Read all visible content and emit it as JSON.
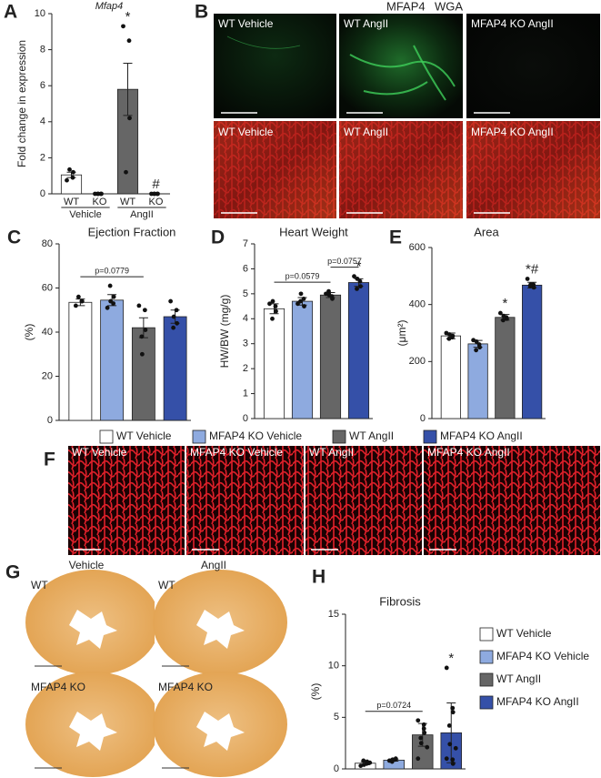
{
  "letters": [
    "A",
    "B",
    "C",
    "D",
    "E",
    "F",
    "G",
    "H"
  ],
  "panel_b": {
    "header": [
      "MFAP4",
      "WGA"
    ],
    "header_colors": [
      "#2eb84d",
      "#e0243a"
    ],
    "labels": [
      [
        "WT Vehicle",
        "WT AngII",
        "MFAP4 KO AngII"
      ],
      [
        "WT Vehicle",
        "WT AngII",
        "MFAP4 KO AngII"
      ]
    ]
  },
  "panel_f": {
    "labels": [
      "WT Vehicle",
      "MFAP4 KO Vehicle",
      "WT AngII",
      "MFAP4 KO AngII"
    ]
  },
  "panel_g": {
    "columns": [
      "Vehicle",
      "AngII"
    ],
    "labels": [
      "WT",
      "WT",
      "MFAP4 KO",
      "MFAP4 KO"
    ]
  },
  "legends": [
    {
      "names": [
        "WT Vehicle",
        "MFAP4 KO Vehicle",
        "WT AngII",
        "MFAP4 KO AngII"
      ],
      "colors": [
        "#ffffff",
        "#8eaadf",
        "#666666",
        "#3550a8"
      ]
    },
    {
      "names": [
        "WT Vehicle",
        "MFAP4 KO Vehicle",
        "WT AngII",
        "MFAP4 KO AngII"
      ],
      "colors": [
        "#ffffff",
        "#8eaadf",
        "#666666",
        "#3550a8"
      ]
    }
  ],
  "chart_data": [
    {
      "type": "bar",
      "title": "Mfap4",
      "ylabel": "Fold change in expression",
      "categories": [
        "WT",
        "KO",
        "WT",
        "KO"
      ],
      "groups": [
        "Vehicle",
        "AngII"
      ],
      "values": [
        1.05,
        0,
        5.8,
        0
      ],
      "errors": [
        0.15,
        0,
        1.45,
        0
      ],
      "points": [
        [
          0.75,
          0.9,
          1.2,
          1.35
        ],
        [
          0,
          0,
          0,
          0,
          0
        ],
        [
          9.3,
          8.5,
          4.2,
          1.2
        ],
        [
          0,
          0,
          0,
          0,
          0
        ]
      ],
      "colors": [
        "#ffffff",
        "#ffffff",
        "#666666",
        "#ffffff"
      ],
      "marks": [
        null,
        null,
        "*",
        "#"
      ],
      "brackets": [],
      "ylim": [
        0,
        10
      ],
      "yticks": [
        0,
        2,
        4,
        6,
        8,
        10
      ]
    },
    {
      "type": "bar",
      "title": "Ejection Fraction",
      "ylabel": "(%)",
      "values": [
        53.5,
        54.5,
        42,
        47
      ],
      "errors": [
        1.5,
        2.5,
        4.5,
        3
      ],
      "points": [
        [
          52,
          54,
          54,
          56
        ],
        [
          51,
          53,
          56,
          61,
          54
        ],
        [
          52,
          50,
          41,
          38,
          30
        ],
        [
          54,
          50,
          44,
          42,
          47
        ]
      ],
      "colors": [
        "#ffffff",
        "#8eaadf",
        "#666666",
        "#3550a8"
      ],
      "marks": [
        null,
        null,
        null,
        null
      ],
      "brackets": [
        {
          "label": "p=0.0779",
          "span": [
            0,
            2
          ]
        }
      ],
      "ylim": [
        0,
        80
      ],
      "yticks": [
        0,
        20,
        40,
        60,
        80
      ]
    },
    {
      "type": "bar",
      "title": "Heart Weight",
      "ylabel": "HW/BW (mg/g)",
      "values": [
        4.4,
        4.7,
        4.95,
        5.45
      ],
      "errors": [
        0.2,
        0.15,
        0.1,
        0.15
      ],
      "points": [
        [
          4.6,
          4.5,
          4.3,
          4.0,
          4.7
        ],
        [
          4.6,
          4.8,
          4.5,
          4.7,
          5.0
        ],
        [
          5.0,
          4.9,
          4.8,
          5.1,
          4.95
        ],
        [
          5.7,
          5.5,
          5.3,
          5.2,
          5.6
        ]
      ],
      "colors": [
        "#ffffff",
        "#8eaadf",
        "#666666",
        "#3550a8"
      ],
      "marks": [
        null,
        null,
        null,
        "*"
      ],
      "brackets": [
        {
          "label": "p=0.0579",
          "span": [
            0,
            2
          ]
        },
        {
          "label": "p=0.0757",
          "span": [
            2,
            3
          ]
        }
      ],
      "ylim": [
        0,
        7
      ],
      "yticks": [
        0,
        1,
        2,
        3,
        4,
        5,
        6,
        7
      ]
    },
    {
      "type": "bar",
      "title": "Area",
      "ylabel": "(μm²)",
      "values": [
        290,
        262,
        355,
        468
      ],
      "errors": [
        10,
        12,
        10,
        10
      ],
      "points": [
        [
          300,
          285,
          290,
          280,
          295
        ],
        [
          275,
          260,
          250,
          240,
          270
        ],
        [
          370,
          355,
          350,
          345,
          360
        ],
        [
          490,
          470,
          460,
          465,
          470
        ]
      ],
      "colors": [
        "#ffffff",
        "#8eaadf",
        "#666666",
        "#3550a8"
      ],
      "marks": [
        null,
        null,
        "*",
        "*#"
      ],
      "brackets": [],
      "ylim": [
        0,
        600
      ],
      "yticks": [
        0,
        200,
        400,
        600
      ]
    },
    {
      "type": "bar",
      "title": "Fibrosis",
      "ylabel": "(%)",
      "values": [
        0.55,
        0.85,
        3.3,
        3.5
      ],
      "errors": [
        0.15,
        0.1,
        1.1,
        2.9
      ],
      "points": [
        [
          0.3,
          0.5,
          0.7,
          0.8,
          0.4,
          0.6
        ],
        [
          0.8,
          0.9,
          1.0,
          0.7,
          0.9
        ],
        [
          4.7,
          4.3,
          3.5,
          3.0,
          2.5,
          2.1,
          1.0,
          3.9
        ],
        [
          9.8,
          5.9,
          5.5,
          4.2,
          2.4,
          2.0,
          1.0,
          0.9,
          0.5
        ]
      ],
      "colors": [
        "#ffffff",
        "#8eaadf",
        "#666666",
        "#3550a8"
      ],
      "marks": [
        null,
        null,
        null,
        "*"
      ],
      "brackets": [
        {
          "label": "p=0.0724",
          "span": [
            0,
            2
          ]
        }
      ],
      "ylim": [
        0,
        15
      ],
      "yticks": [
        0,
        5,
        10,
        15
      ]
    }
  ]
}
